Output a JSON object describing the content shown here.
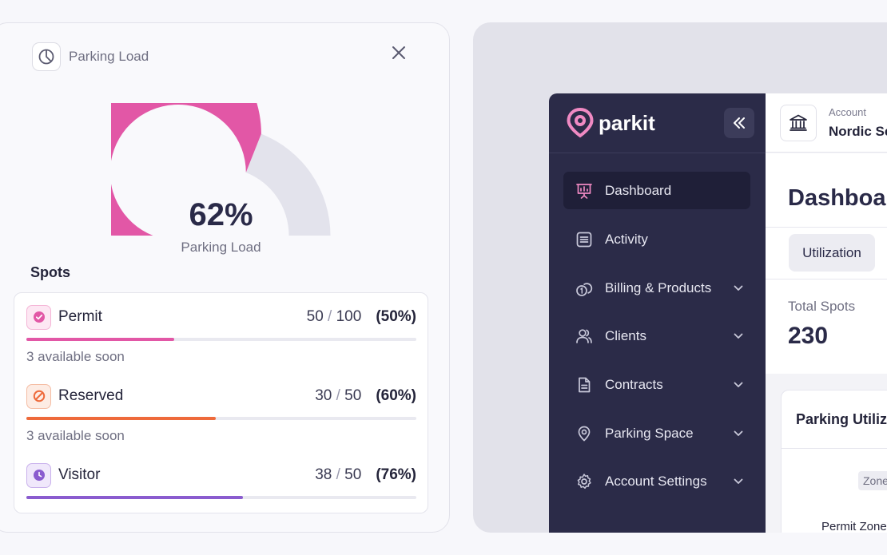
{
  "load_card": {
    "title": "Parking Load",
    "gauge": {
      "percent_text": "62%",
      "label": "Parking Load",
      "value": 0.62,
      "fill_color": "#e257a6",
      "track_color": "#e3e3ec"
    },
    "spots_heading": "Spots",
    "spots": [
      {
        "name": "Permit",
        "used": "50",
        "total": "100",
        "pct_text": "(50%)",
        "fill": 0.38,
        "color": "#e257a6",
        "icon": "check-circle-icon",
        "note": "3 available soon"
      },
      {
        "name": "Reserved",
        "used": "30",
        "total": "50",
        "pct_text": "(60%)",
        "fill": 0.486,
        "color": "#ee6a3b",
        "icon": "no-entry-icon",
        "note": "3 available soon"
      },
      {
        "name": "Visitor",
        "used": "38",
        "total": "50",
        "pct_text": "(76%)",
        "fill": 0.555,
        "color": "#8a5ccf",
        "icon": "clock-icon",
        "note": ""
      }
    ],
    "separator": "/"
  },
  "app": {
    "brand": "parkit",
    "account_label": "Account",
    "account_name": "Nordic Sc",
    "nav": [
      {
        "label": "Dashboard",
        "icon": "presentation-chart-icon",
        "active": true,
        "chevron": false
      },
      {
        "label": "Activity",
        "icon": "list-icon",
        "active": false,
        "chevron": false
      },
      {
        "label": "Billing & Products",
        "icon": "coins-icon",
        "active": false,
        "chevron": true
      },
      {
        "label": "Clients",
        "icon": "users-icon",
        "active": false,
        "chevron": true
      },
      {
        "label": "Contracts",
        "icon": "document-icon",
        "active": false,
        "chevron": true
      },
      {
        "label": "Parking Space",
        "icon": "map-pin-icon",
        "active": false,
        "chevron": true
      },
      {
        "label": "Account Settings",
        "icon": "gear-icon",
        "active": false,
        "chevron": true
      }
    ],
    "dashboard_title": "Dashboard",
    "tab_label": "Utilization",
    "stat_label": "Total Spots",
    "stat_value": "230",
    "util_title": "Parking Utiliz",
    "zone_chip": "Zone",
    "permit_zone": "Permit Zone"
  },
  "colors": {
    "sidebar_bg": "#2b2b48",
    "accent": "#e257a6"
  }
}
